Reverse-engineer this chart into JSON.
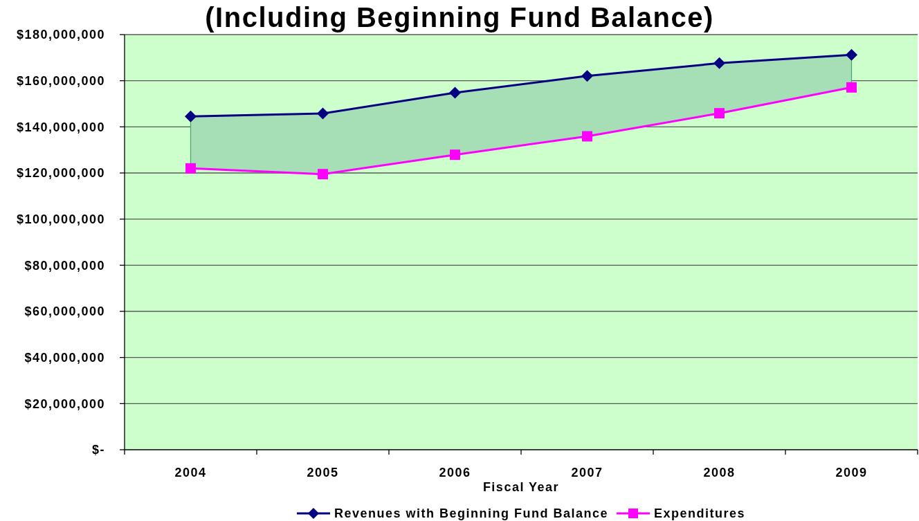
{
  "chart_data": {
    "type": "line",
    "title": "(Including Beginning Fund Balance)",
    "xlabel": "Fiscal Year",
    "categories": [
      "2004",
      "2005",
      "2006",
      "2007",
      "2008",
      "2009"
    ],
    "series": [
      {
        "name": "Revenues with Beginning Fund Balance",
        "color": "#000080",
        "marker": "diamond",
        "values": [
          144500000,
          145800000,
          154800000,
          162100000,
          167600000,
          171200000
        ],
        "lower": [
          122000000,
          119500000,
          127900000,
          135900000,
          145900000,
          157100000
        ],
        "upper": [
          144500000,
          145800000,
          154800000,
          162100000,
          167600000,
          171200000
        ]
      },
      {
        "name": "Expenditures",
        "color": "#ff00ff",
        "marker": "square",
        "values": [
          122000000,
          119500000,
          127900000,
          135900000,
          145900000,
          157100000
        ]
      }
    ],
    "ylim": [
      0,
      180000000
    ],
    "yticks": [
      {
        "value": 0,
        "label": "$-"
      },
      {
        "value": 20000000,
        "label": "$20,000,000"
      },
      {
        "value": 40000000,
        "label": "$40,000,000"
      },
      {
        "value": 60000000,
        "label": "$60,000,000"
      },
      {
        "value": 80000000,
        "label": "$80,000,000"
      },
      {
        "value": 100000000,
        "label": "$100,000,000"
      },
      {
        "value": 120000000,
        "label": "$120,000,000"
      },
      {
        "value": 140000000,
        "label": "$140,000,000"
      },
      {
        "value": 160000000,
        "label": "$160,000,000"
      },
      {
        "value": 180000000,
        "label": "$180,000,000"
      }
    ],
    "grid": "y",
    "legend": "bottom"
  }
}
